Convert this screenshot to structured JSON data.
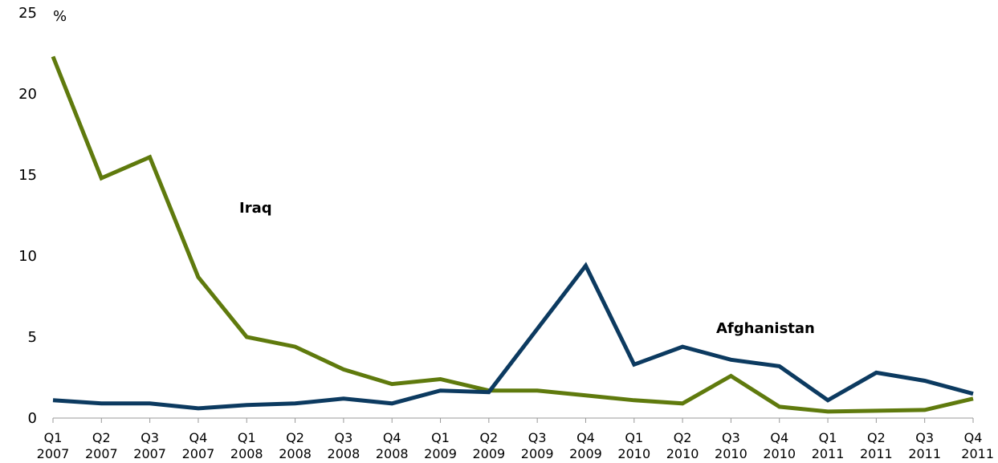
{
  "chart_data": {
    "type": "line",
    "y_unit_label": "%",
    "ylim": [
      0,
      25
    ],
    "y_ticks": [
      "0",
      "5",
      "10",
      "15",
      "20",
      "25"
    ],
    "categories": [
      {
        "quarter": "Q1",
        "year": "2007"
      },
      {
        "quarter": "Q2",
        "year": "2007"
      },
      {
        "quarter": "Q3",
        "year": "2007"
      },
      {
        "quarter": "Q4",
        "year": "2007"
      },
      {
        "quarter": "Q1",
        "year": "2008"
      },
      {
        "quarter": "Q2",
        "year": "2008"
      },
      {
        "quarter": "Q3",
        "year": "2008"
      },
      {
        "quarter": "Q4",
        "year": "2008"
      },
      {
        "quarter": "Q1",
        "year": "2009"
      },
      {
        "quarter": "Q2",
        "year": "2009"
      },
      {
        "quarter": "Q3",
        "year": "2009"
      },
      {
        "quarter": "Q4",
        "year": "2009"
      },
      {
        "quarter": "Q1",
        "year": "2010"
      },
      {
        "quarter": "Q2",
        "year": "2010"
      },
      {
        "quarter": "Q3",
        "year": "2010"
      },
      {
        "quarter": "Q4",
        "year": "2010"
      },
      {
        "quarter": "Q1",
        "year": "2011"
      },
      {
        "quarter": "Q2",
        "year": "2011"
      },
      {
        "quarter": "Q3",
        "year": "2011"
      },
      {
        "quarter": "Q4",
        "year": "2011"
      }
    ],
    "series": [
      {
        "name": "Iraq",
        "color": "#5f7a0d",
        "label_position": "upper-left",
        "values": [
          22.3,
          14.8,
          16.1,
          8.7,
          5.0,
          4.4,
          3.0,
          2.1,
          2.4,
          1.7,
          1.7,
          1.4,
          1.1,
          0.9,
          2.6,
          0.7,
          0.4,
          0.45,
          0.5,
          1.2
        ]
      },
      {
        "name": "Afghanistan",
        "color": "#0c3a60",
        "label_position": "right",
        "values": [
          1.1,
          0.9,
          0.9,
          0.6,
          0.8,
          0.9,
          1.2,
          0.9,
          1.7,
          1.6,
          5.5,
          9.4,
          3.3,
          4.4,
          3.6,
          3.2,
          1.1,
          2.8,
          2.3,
          1.5
        ]
      }
    ],
    "grid": false,
    "legend": "inline"
  }
}
